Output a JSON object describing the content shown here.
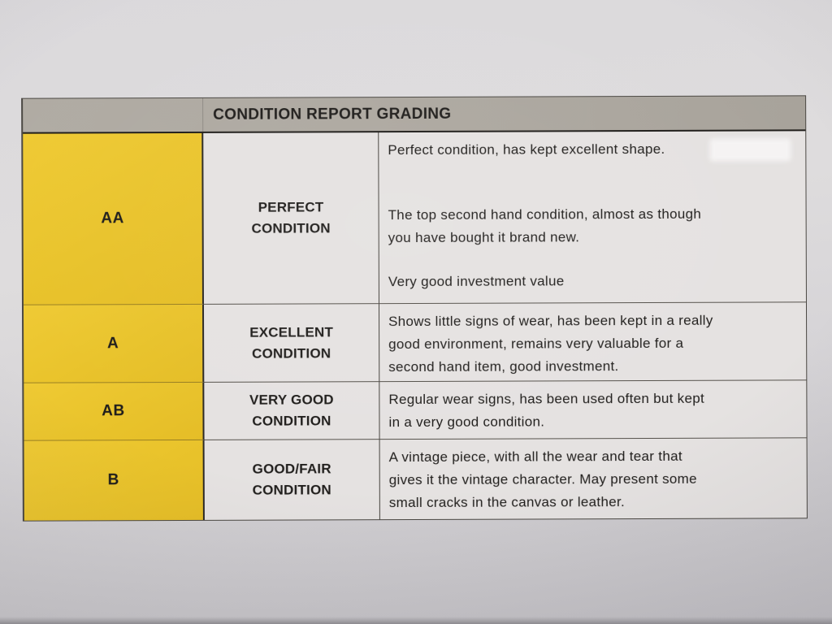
{
  "table": {
    "title": "CONDITION REPORT GRADING",
    "colors": {
      "header_bg": "#aca79f",
      "grade_column_bg": "#e9c32b",
      "cell_bg": "#e5e2e1",
      "border": "#4a4742",
      "text": "#1f1d1b",
      "paper_bg": "#d8d6d9"
    },
    "rows": [
      {
        "grade": "AA",
        "condition_lines": [
          "PERFECT",
          "CONDITION"
        ],
        "paragraphs": [
          [
            "Perfect condition, has kept excellent shape."
          ],
          [
            "The top second hand condition, almost as though",
            "you have bought it brand new."
          ],
          [
            "Very good investment value"
          ]
        ]
      },
      {
        "grade": "A",
        "condition_lines": [
          "EXCELLENT",
          "CONDITION"
        ],
        "paragraphs": [
          [
            "Shows little signs of wear, has been kept in a really",
            "good environment, remains very valuable for a",
            "second hand item, good investment."
          ]
        ]
      },
      {
        "grade": "AB",
        "condition_lines": [
          "VERY GOOD",
          "CONDITION"
        ],
        "paragraphs": [
          [
            "Regular wear signs, has been used often but kept",
            "in a very good condition."
          ]
        ]
      },
      {
        "grade": "B",
        "condition_lines": [
          "GOOD/FAIR",
          "CONDITION"
        ],
        "paragraphs": [
          [
            "A vintage piece, with all the wear and tear that",
            "gives it the vintage character. May present some",
            "small cracks in the canvas or leather."
          ]
        ]
      }
    ]
  }
}
